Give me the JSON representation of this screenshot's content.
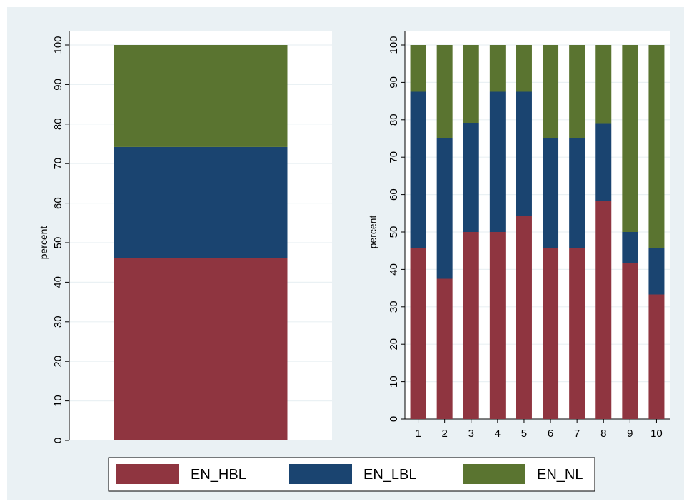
{
  "colors": {
    "background_outer": "#eaf1f4",
    "plot_background": "#ffffff",
    "grid": "#eaf1f4",
    "EN_HBL": "#8f3540",
    "EN_LBL": "#1a4470",
    "EN_NL": "#5a7430"
  },
  "legend": {
    "position": "bottom",
    "items": [
      "EN_HBL",
      "EN_LBL",
      "EN_NL"
    ]
  },
  "chart_data": [
    {
      "type": "bar",
      "stacked": true,
      "ylabel": "percent",
      "ylim": [
        0,
        100
      ],
      "yticks": [
        0,
        10,
        20,
        30,
        40,
        50,
        60,
        70,
        80,
        90,
        100
      ],
      "grid": true,
      "categories": [
        ""
      ],
      "series": [
        {
          "name": "EN_HBL",
          "values": [
            46.2
          ]
        },
        {
          "name": "EN_LBL",
          "values": [
            28.0
          ]
        },
        {
          "name": "EN_NL",
          "values": [
            25.8
          ]
        }
      ]
    },
    {
      "type": "bar",
      "stacked": true,
      "ylabel": "percent",
      "ylim": [
        0,
        100
      ],
      "yticks": [
        0,
        10,
        20,
        30,
        40,
        50,
        60,
        70,
        80,
        90,
        100
      ],
      "grid": true,
      "categories": [
        "1",
        "2",
        "3",
        "4",
        "5",
        "6",
        "7",
        "8",
        "9",
        "10"
      ],
      "series": [
        {
          "name": "EN_HBL",
          "values": [
            45.8,
            37.5,
            50.0,
            50.0,
            54.2,
            45.8,
            45.8,
            58.3,
            41.7,
            33.3
          ]
        },
        {
          "name": "EN_LBL",
          "values": [
            41.7,
            37.5,
            29.2,
            37.5,
            33.3,
            29.2,
            29.2,
            20.8,
            8.3,
            12.5
          ]
        },
        {
          "name": "EN_NL",
          "values": [
            12.5,
            25.0,
            20.8,
            12.5,
            12.5,
            25.0,
            25.0,
            20.9,
            50.0,
            54.2
          ]
        }
      ]
    }
  ]
}
